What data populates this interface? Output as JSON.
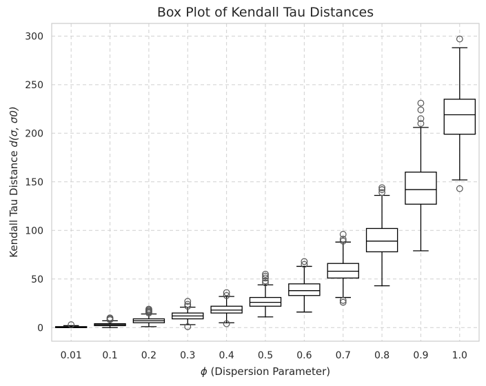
{
  "chart_data": {
    "type": "boxplot",
    "title": "Box Plot of Kendall Tau Distances",
    "xlabel_symbol": "ϕ",
    "xlabel_text": " (Dispersion Parameter)",
    "ylabel_text": "Kendall Tau Distance ",
    "ylabel_symbol": "d(σ, σ0)",
    "ylim": [
      -14,
      313
    ],
    "yticks": [
      0,
      50,
      100,
      150,
      200,
      250,
      300
    ],
    "grid": true,
    "categories": [
      "0.01",
      "0.1",
      "0.2",
      "0.3",
      "0.4",
      "0.5",
      "0.6",
      "0.7",
      "0.8",
      "0.9",
      "1.0"
    ],
    "boxes": [
      {
        "whislo": 0,
        "q1": 0,
        "med": 0,
        "q3": 1,
        "whishi": 2,
        "fliers": [
          3
        ]
      },
      {
        "whislo": 0,
        "q1": 2,
        "med": 3,
        "q3": 4,
        "whishi": 7,
        "fliers": [
          8,
          9,
          10
        ]
      },
      {
        "whislo": 1,
        "q1": 5,
        "med": 7,
        "q3": 9,
        "whishi": 14,
        "fliers": [
          15,
          16,
          17,
          18,
          19
        ]
      },
      {
        "whislo": 3,
        "q1": 9,
        "med": 12,
        "q3": 15,
        "whishi": 21,
        "fliers": [
          1,
          22,
          24,
          27
        ]
      },
      {
        "whislo": 5,
        "q1": 15,
        "med": 18,
        "q3": 22,
        "whishi": 32,
        "fliers": [
          4,
          33,
          36
        ]
      },
      {
        "whislo": 11,
        "q1": 22,
        "med": 26,
        "q3": 31,
        "whishi": 44,
        "fliers": [
          46,
          48,
          51,
          53,
          55
        ]
      },
      {
        "whislo": 16,
        "q1": 33,
        "med": 38,
        "q3": 45,
        "whishi": 63,
        "fliers": [
          65,
          68
        ]
      },
      {
        "whislo": 31,
        "q1": 51,
        "med": 58,
        "q3": 66,
        "whishi": 88,
        "fliers": [
          26,
          28,
          89,
          91,
          96
        ]
      },
      {
        "whislo": 43,
        "q1": 78,
        "med": 89,
        "q3": 102,
        "whishi": 136,
        "fliers": [
          139,
          142,
          144
        ]
      },
      {
        "whislo": 79,
        "q1": 127,
        "med": 142,
        "q3": 160,
        "whishi": 206,
        "fliers": [
          210,
          215,
          224,
          231
        ]
      },
      {
        "whislo": 152,
        "q1": 199,
        "med": 219,
        "q3": 235,
        "whishi": 288,
        "fliers": [
          143,
          297
        ]
      }
    ]
  }
}
